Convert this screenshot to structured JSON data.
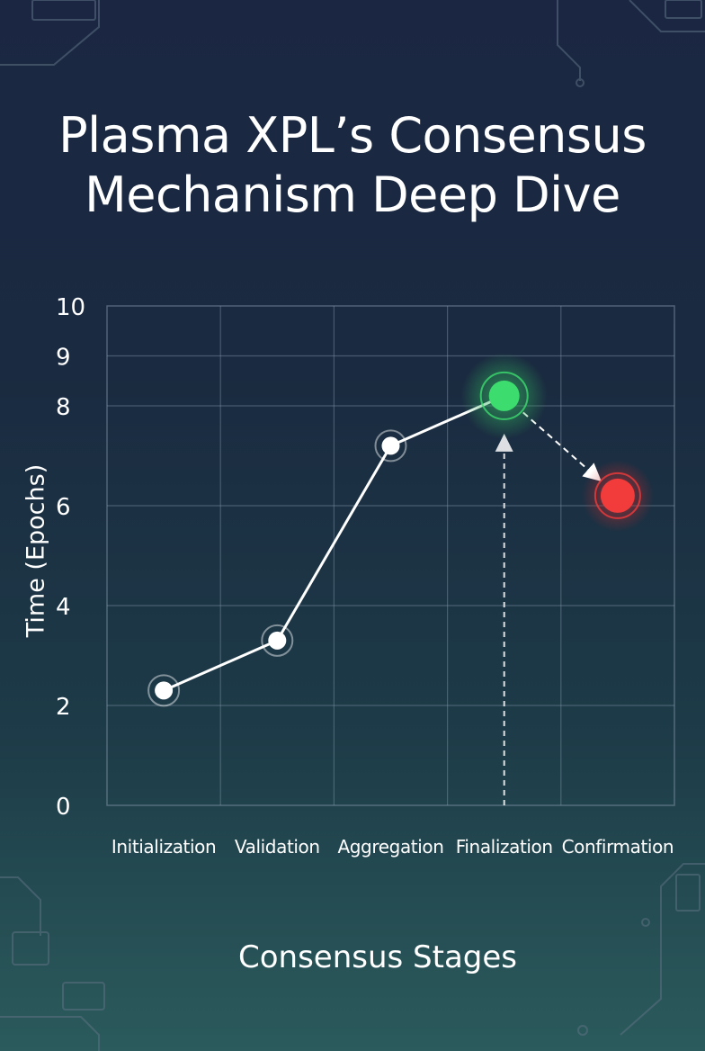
{
  "chart_data": {
    "type": "line",
    "title_lines": [
      "Plasma XPL’s Consensus",
      "Mechanism Deep Dive"
    ],
    "xlabel": "Consensus Stages",
    "ylabel": "Time (Epochs)",
    "categories": [
      "Initialization",
      "Validation",
      "Aggregation",
      "Finalization",
      "Confirmation"
    ],
    "values": [
      2.3,
      3.3,
      7.2,
      8.2,
      6.2
    ],
    "yticks": [
      0,
      2,
      4,
      6,
      8,
      9,
      10
    ],
    "ylim": [
      0,
      10
    ],
    "grid": true,
    "point_styles": [
      "normal",
      "normal",
      "normal",
      "highlight",
      "alert"
    ],
    "colors": {
      "line": "#ffffff",
      "highlight": "#3ddc6e",
      "alert": "#f23b3b",
      "grid": "#7f93a6",
      "text": "#ffffff"
    }
  }
}
